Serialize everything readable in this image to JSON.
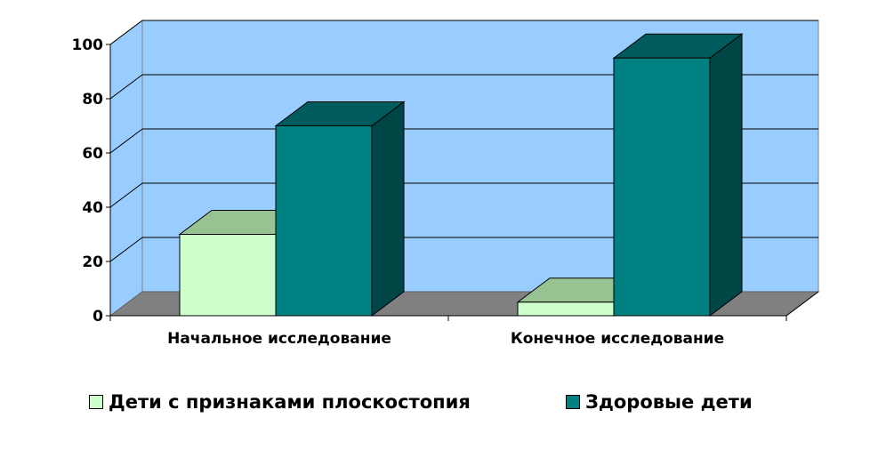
{
  "chart_data": {
    "type": "bar",
    "style": "3d-clustered-column",
    "title": "",
    "xlabel": "",
    "ylabel": "",
    "ylim": [
      0,
      100
    ],
    "yticks": [
      0,
      20,
      40,
      60,
      80,
      100
    ],
    "grid": true,
    "legend_position": "bottom",
    "categories": [
      "Начальное исследование",
      "Конечное исследование"
    ],
    "series": [
      {
        "name": "Дети с признаками плоскостопия",
        "values": [
          30,
          5
        ],
        "color": "#ccffcc"
      },
      {
        "name": "Здоровые дети",
        "values": [
          70,
          95
        ],
        "color": "#008080"
      }
    ],
    "colors": {
      "back_wall": "#99ccff",
      "floor": "#808080",
      "gridline": "#000000"
    }
  }
}
